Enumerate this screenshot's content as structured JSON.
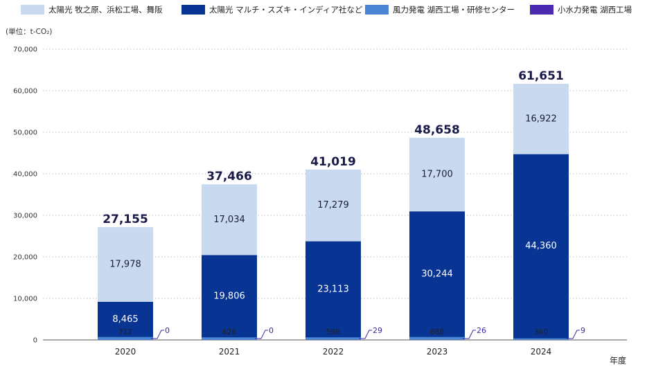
{
  "legend": [
    {
      "label": "太陽光 牧之原、浜松工場、舞阪",
      "color": "#c9daf0"
    },
    {
      "label": "太陽光 マルチ・スズキ・インディア社など",
      "color": "#083593"
    },
    {
      "label": "風力発電 湖西工場・研修センター",
      "color": "#4a86d4"
    },
    {
      "label": "小水力発電 湖西工場",
      "color": "#4a2ab0"
    }
  ],
  "unit_label": "(単位：t-CO₂)",
  "xaxis_title": "年度",
  "chart_data": {
    "type": "bar",
    "stacked": true,
    "categories": [
      "2020",
      "2021",
      "2022",
      "2023",
      "2024"
    ],
    "ylim": [
      0,
      70000
    ],
    "yticks": [
      "0",
      "10,000",
      "20,000",
      "30,000",
      "40,000",
      "50,000",
      "60,000",
      "70,000"
    ],
    "grid": true,
    "legend_position": "top",
    "series": [
      {
        "name": "小水力発電 湖西工場",
        "values": [
          0,
          0,
          29,
          26,
          9
        ],
        "labels": [
          "0",
          "0",
          "29",
          "26",
          "9"
        ],
        "color": "#4a2ab0"
      },
      {
        "name": "風力発電 湖西工場・研修センター",
        "values": [
          712,
          626,
          598,
          688,
          360
        ],
        "labels": [
          "712",
          "626",
          "598",
          "688",
          "360"
        ],
        "color": "#4a86d4"
      },
      {
        "name": "太陽光 マルチ・スズキ・インディア社など",
        "values": [
          8465,
          19806,
          23113,
          30244,
          44360
        ],
        "labels": [
          "8,465",
          "19,806",
          "23,113",
          "30,244",
          "44,360"
        ],
        "color": "#083593"
      },
      {
        "name": "太陽光 牧之原、浜松工場、舞阪",
        "values": [
          17978,
          17034,
          17279,
          17700,
          16922
        ],
        "labels": [
          "17,978",
          "17,034",
          "17,279",
          "17,700",
          "16,922"
        ],
        "color": "#c9daf0"
      }
    ],
    "totals": [
      27155,
      37466,
      41019,
      48658,
      61651
    ],
    "total_labels": [
      "27,155",
      "37,466",
      "41,019",
      "48,658",
      "61,651"
    ]
  }
}
